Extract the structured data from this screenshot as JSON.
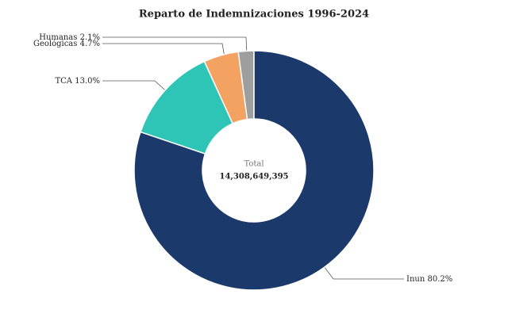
{
  "chart_data": {
    "type": "donut",
    "title": "Reparto de Indemnizaciones 1996-2024",
    "categories": [
      "Inun",
      "TCA",
      "Geológicas",
      "Humanas"
    ],
    "values": [
      80.2,
      13.0,
      4.7,
      2.1
    ],
    "value_labels": [
      "80.2%",
      "13.0%",
      "4.7%",
      "2.1%"
    ],
    "colors": [
      "#1b3a6b",
      "#2ec4b6",
      "#f4a261",
      "#9e9e9e"
    ],
    "center_label": "Total",
    "center_value": "14,308,649,395"
  }
}
